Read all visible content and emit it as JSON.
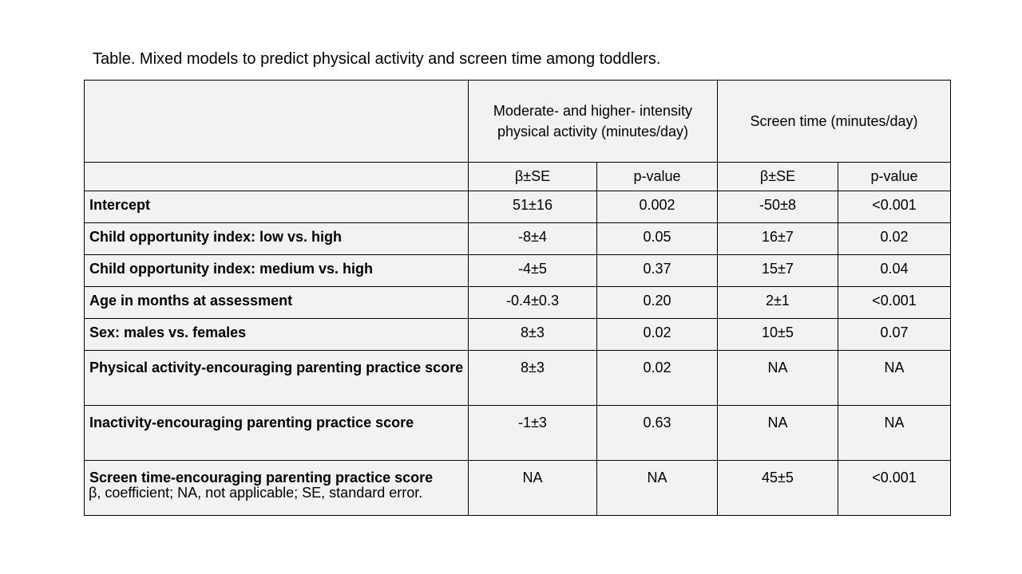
{
  "title": "Table. Mixed models to predict physical activity and screen time among toddlers.",
  "table": {
    "group_headers": [
      "Moderate- and higher- intensity physical activity (minutes/day)",
      "Screen time (minutes/day)"
    ],
    "sub_headers": [
      "β±SE",
      "p-value",
      "β±SE",
      "p-value"
    ],
    "rows": [
      {
        "label": "Intercept",
        "values": [
          "51±16",
          "0.002",
          "-50±8",
          "<0.001"
        ]
      },
      {
        "label": "Child opportunity index: low vs. high",
        "values": [
          "-8±4",
          "0.05",
          "16±7",
          "0.02"
        ]
      },
      {
        "label": "Child opportunity index: medium vs. high",
        "values": [
          "-4±5",
          "0.37",
          "15±7",
          "0.04"
        ]
      },
      {
        "label": "Age in months at assessment",
        "values": [
          "-0.4±0.3",
          "0.20",
          "2±1",
          "<0.001"
        ]
      },
      {
        "label": "Sex: males vs. females",
        "values": [
          "8±3",
          "0.02",
          "10±5",
          "0.07"
        ]
      },
      {
        "label": "Physical activity-encouraging parenting practice score",
        "values": [
          "8±3",
          "0.02",
          "NA",
          "NA"
        ]
      },
      {
        "label": "Inactivity-encouraging parenting practice score",
        "values": [
          "-1±3",
          "0.63",
          "NA",
          "NA"
        ]
      },
      {
        "label": "Screen time-encouraging parenting practice score",
        "values": [
          "NA",
          "NA",
          "45±5",
          "<0.001"
        ]
      }
    ]
  },
  "footnote": "β, coefficient; NA, not applicable; SE, standard error."
}
